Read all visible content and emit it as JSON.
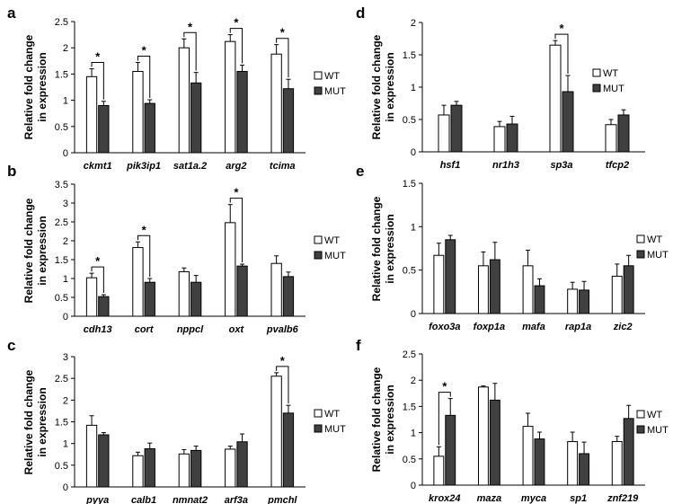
{
  "legend": {
    "wt": "WT",
    "mut": "MUT"
  },
  "colors": {
    "wt": "#ffffff",
    "mut": "#404040",
    "edge": "#000000",
    "grid": "#000000"
  },
  "chart_data": [
    {
      "panel": "a",
      "type": "bar",
      "ylabel": "Relative fold change in expression",
      "ylim": [
        0,
        2.5
      ],
      "yticks": [
        0,
        0.5,
        1,
        1.5,
        2,
        2.5
      ],
      "categories": [
        "ckmt1",
        "pik3ip1",
        "sat1a.2",
        "arg2",
        "tcima"
      ],
      "series": [
        {
          "name": "WT",
          "values": [
            1.45,
            1.55,
            2.0,
            2.12,
            1.88
          ],
          "errors": [
            0.15,
            0.17,
            0.17,
            0.13,
            0.18
          ]
        },
        {
          "name": "MUT",
          "values": [
            0.9,
            0.94,
            1.33,
            1.55,
            1.22
          ],
          "errors": [
            0.08,
            0.07,
            0.2,
            0.12,
            0.18
          ]
        }
      ],
      "significant": [
        "*",
        "*",
        "*",
        "*",
        "*"
      ],
      "legend_position": "right"
    },
    {
      "panel": "b",
      "type": "bar",
      "ylabel": "Relative fold change in expression",
      "ylim": [
        0,
        3.5
      ],
      "yticks": [
        0,
        0.5,
        1,
        1.5,
        2,
        2.5,
        3,
        3.5
      ],
      "categories": [
        "cdh13",
        "cort",
        "nppcl",
        "oxt",
        "pvalb6"
      ],
      "series": [
        {
          "name": "WT",
          "values": [
            1.02,
            1.82,
            1.18,
            2.48,
            1.4
          ],
          "errors": [
            0.12,
            0.15,
            0.1,
            0.48,
            0.2
          ]
        },
        {
          "name": "MUT",
          "values": [
            0.52,
            0.9,
            0.9,
            1.33,
            1.05
          ],
          "errors": [
            0.05,
            0.1,
            0.18,
            0.05,
            0.12
          ]
        }
      ],
      "significant": [
        "*",
        "*",
        "",
        "*",
        ""
      ],
      "legend_position": "right"
    },
    {
      "panel": "c",
      "type": "bar",
      "ylabel": "Relative fold change in expression",
      "ylim": [
        0,
        3
      ],
      "yticks": [
        0,
        0.5,
        1,
        1.5,
        2,
        2.5,
        3
      ],
      "categories": [
        "pyya",
        "calb1",
        "nmnat2",
        "arf3a",
        "pmchl"
      ],
      "series": [
        {
          "name": "WT",
          "values": [
            1.42,
            0.72,
            0.76,
            0.87,
            2.55
          ],
          "errors": [
            0.22,
            0.08,
            0.1,
            0.07,
            0.08
          ]
        },
        {
          "name": "MUT",
          "values": [
            1.2,
            0.88,
            0.84,
            1.04,
            1.7
          ],
          "errors": [
            0.05,
            0.13,
            0.1,
            0.18,
            0.18
          ]
        }
      ],
      "significant": [
        "",
        "",
        "",
        "",
        "*"
      ],
      "legend_position": "right"
    },
    {
      "panel": "d",
      "type": "bar",
      "ylabel": "Relative fold change in expression",
      "ylim": [
        0,
        2
      ],
      "yticks": [
        0,
        0.5,
        1,
        1.5,
        2
      ],
      "categories": [
        "hsf1",
        "nr1h3",
        "sp3a",
        "tfcp2"
      ],
      "series": [
        {
          "name": "WT",
          "values": [
            0.57,
            0.39,
            1.65,
            0.42
          ],
          "errors": [
            0.15,
            0.08,
            0.07,
            0.08
          ]
        },
        {
          "name": "MUT",
          "values": [
            0.72,
            0.43,
            0.93,
            0.57
          ],
          "errors": [
            0.06,
            0.12,
            0.25,
            0.08
          ]
        }
      ],
      "significant": [
        "",
        "",
        "*",
        ""
      ],
      "legend_position": "right"
    },
    {
      "panel": "e",
      "type": "bar",
      "ylabel": "Relative fold change in expression",
      "ylim": [
        0,
        1.5
      ],
      "yticks": [
        0,
        0.5,
        1,
        1.5
      ],
      "categories": [
        "foxo3a",
        "foxp1a",
        "mafa",
        "rap1a",
        "zic2"
      ],
      "series": [
        {
          "name": "WT",
          "values": [
            0.67,
            0.55,
            0.55,
            0.28,
            0.43
          ],
          "errors": [
            0.14,
            0.16,
            0.18,
            0.08,
            0.14
          ]
        },
        {
          "name": "MUT",
          "values": [
            0.85,
            0.62,
            0.32,
            0.27,
            0.55
          ],
          "errors": [
            0.05,
            0.2,
            0.08,
            0.1,
            0.12
          ]
        }
      ],
      "significant": [
        "",
        "",
        "",
        "",
        ""
      ],
      "legend_position": "right"
    },
    {
      "panel": "f",
      "type": "bar",
      "ylabel": "Relative fold change in expression",
      "ylim": [
        0,
        2.5
      ],
      "yticks": [
        0,
        0.5,
        1,
        1.5,
        2,
        2.5
      ],
      "categories": [
        "krox24",
        "maza",
        "myca",
        "sp1",
        "znf219"
      ],
      "series": [
        {
          "name": "WT",
          "values": [
            0.55,
            1.87,
            1.12,
            0.83,
            0.83
          ],
          "errors": [
            0.18,
            0.02,
            0.25,
            0.18,
            0.1
          ]
        },
        {
          "name": "MUT",
          "values": [
            1.33,
            1.62,
            0.88,
            0.6,
            1.27
          ],
          "errors": [
            0.32,
            0.32,
            0.13,
            0.22,
            0.25
          ]
        }
      ],
      "significant": [
        "*",
        "",
        "",
        "",
        ""
      ],
      "legend_position": "right"
    }
  ]
}
